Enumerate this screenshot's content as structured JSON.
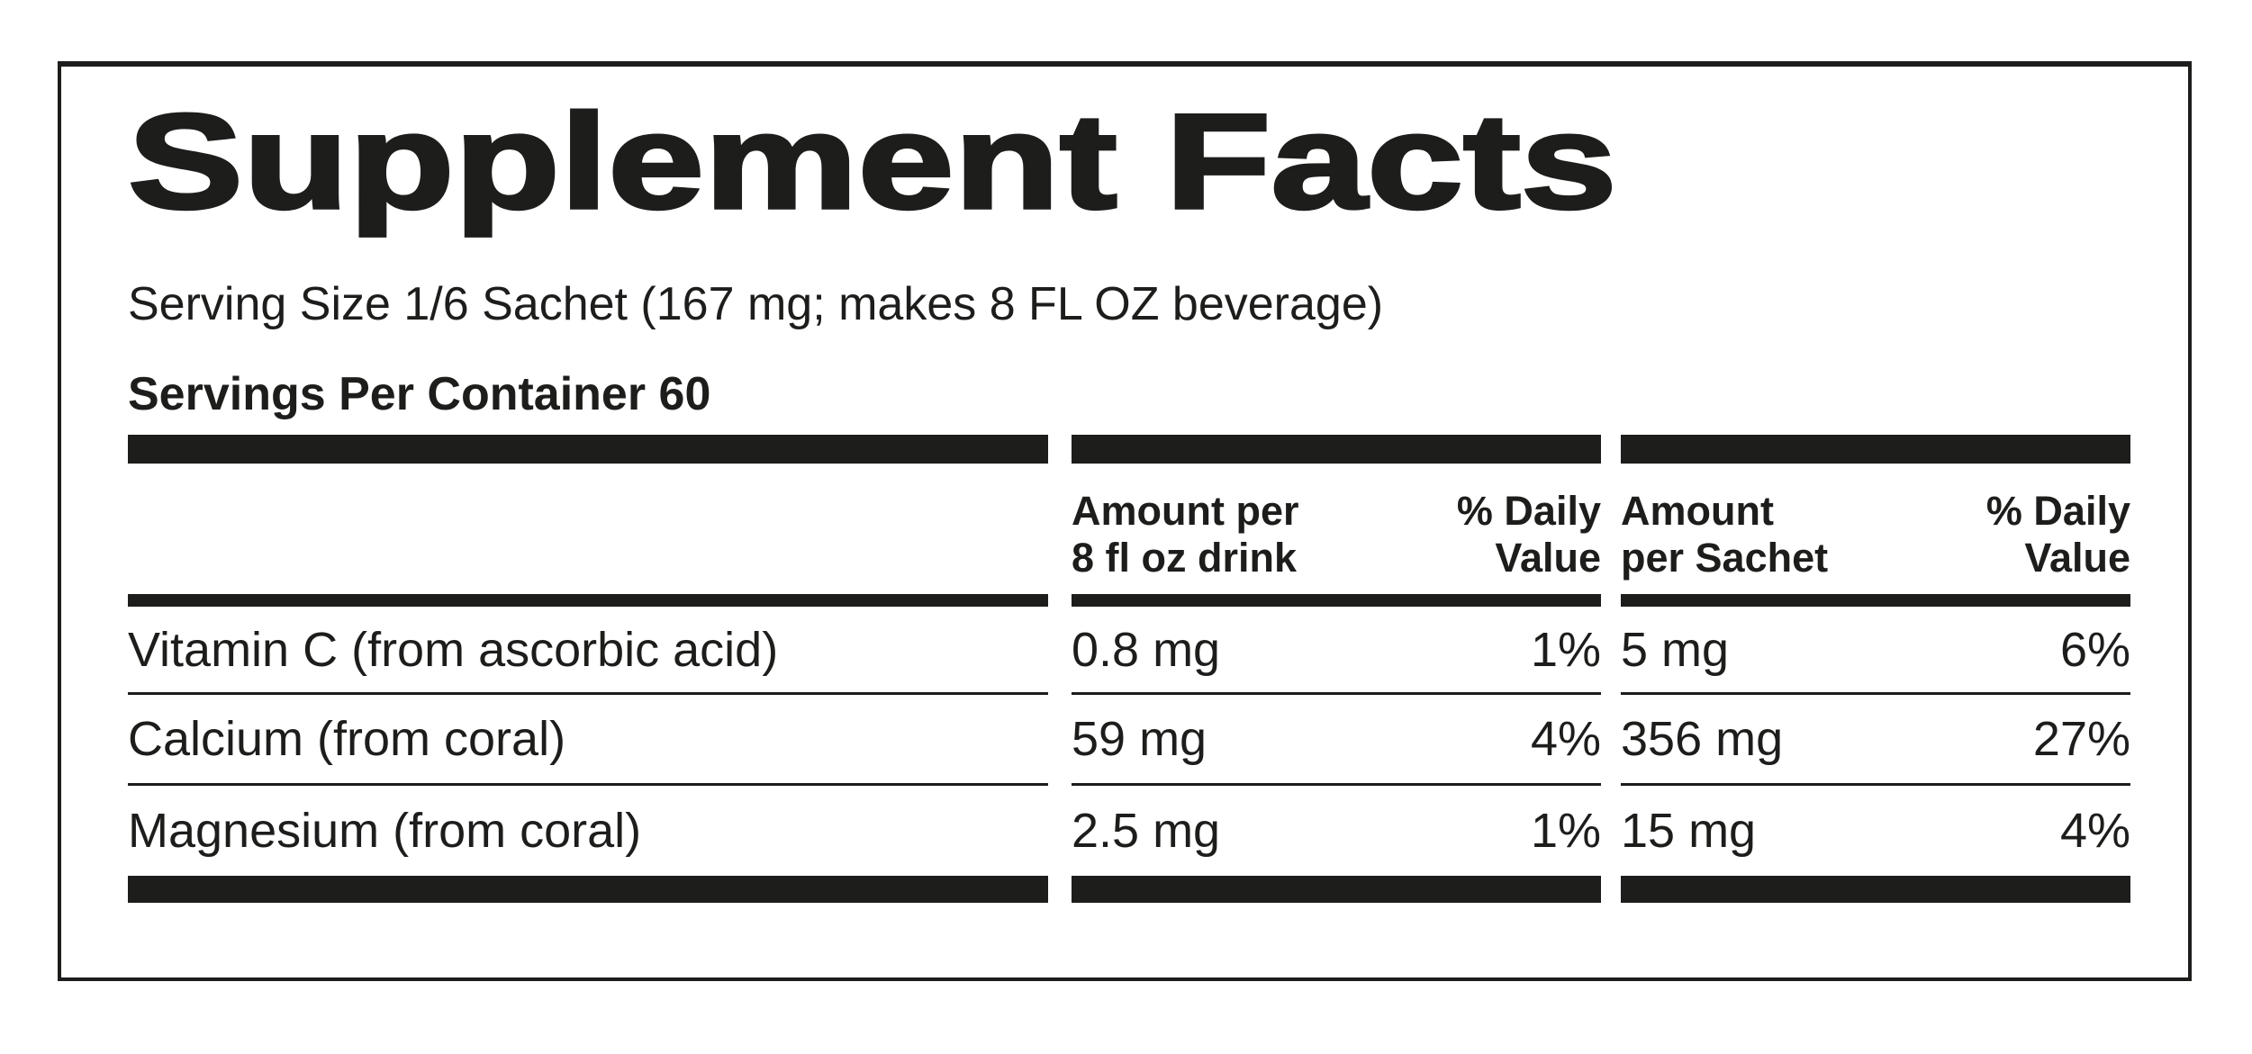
{
  "label": {
    "title": "Supplement Facts",
    "serving_size": "Serving Size 1/6 Sachet (167 mg; makes 8 FL OZ beverage)",
    "servings_per_container": "Servings Per Container 60"
  },
  "table": {
    "columns": {
      "amount_drink_l1": "Amount per",
      "amount_drink_l2": "8 fl oz drink",
      "dv_drink_l1": "% Daily",
      "dv_drink_l2": "Value",
      "amount_sachet_l1": "Amount",
      "amount_sachet_l2": "per Sachet",
      "dv_sachet_l1": "% Daily",
      "dv_sachet_l2": "Value"
    },
    "rows": [
      {
        "name": "Vitamin C (from ascorbic acid)",
        "amount_drink": "0.8 mg",
        "dv_drink": "1%",
        "amount_sachet": "5 mg",
        "dv_sachet": "6%"
      },
      {
        "name": "Calcium (from coral)",
        "amount_drink": "59 mg",
        "dv_drink": "4%",
        "amount_sachet": "356 mg",
        "dv_sachet": "27%"
      },
      {
        "name": "Magnesium (from coral)",
        "amount_drink": "2.5 mg",
        "dv_drink": "1%",
        "amount_sachet": "15 mg",
        "dv_sachet": "4%"
      }
    ]
  },
  "colors": {
    "ink": "#1d1d1b",
    "background": "#ffffff"
  }
}
